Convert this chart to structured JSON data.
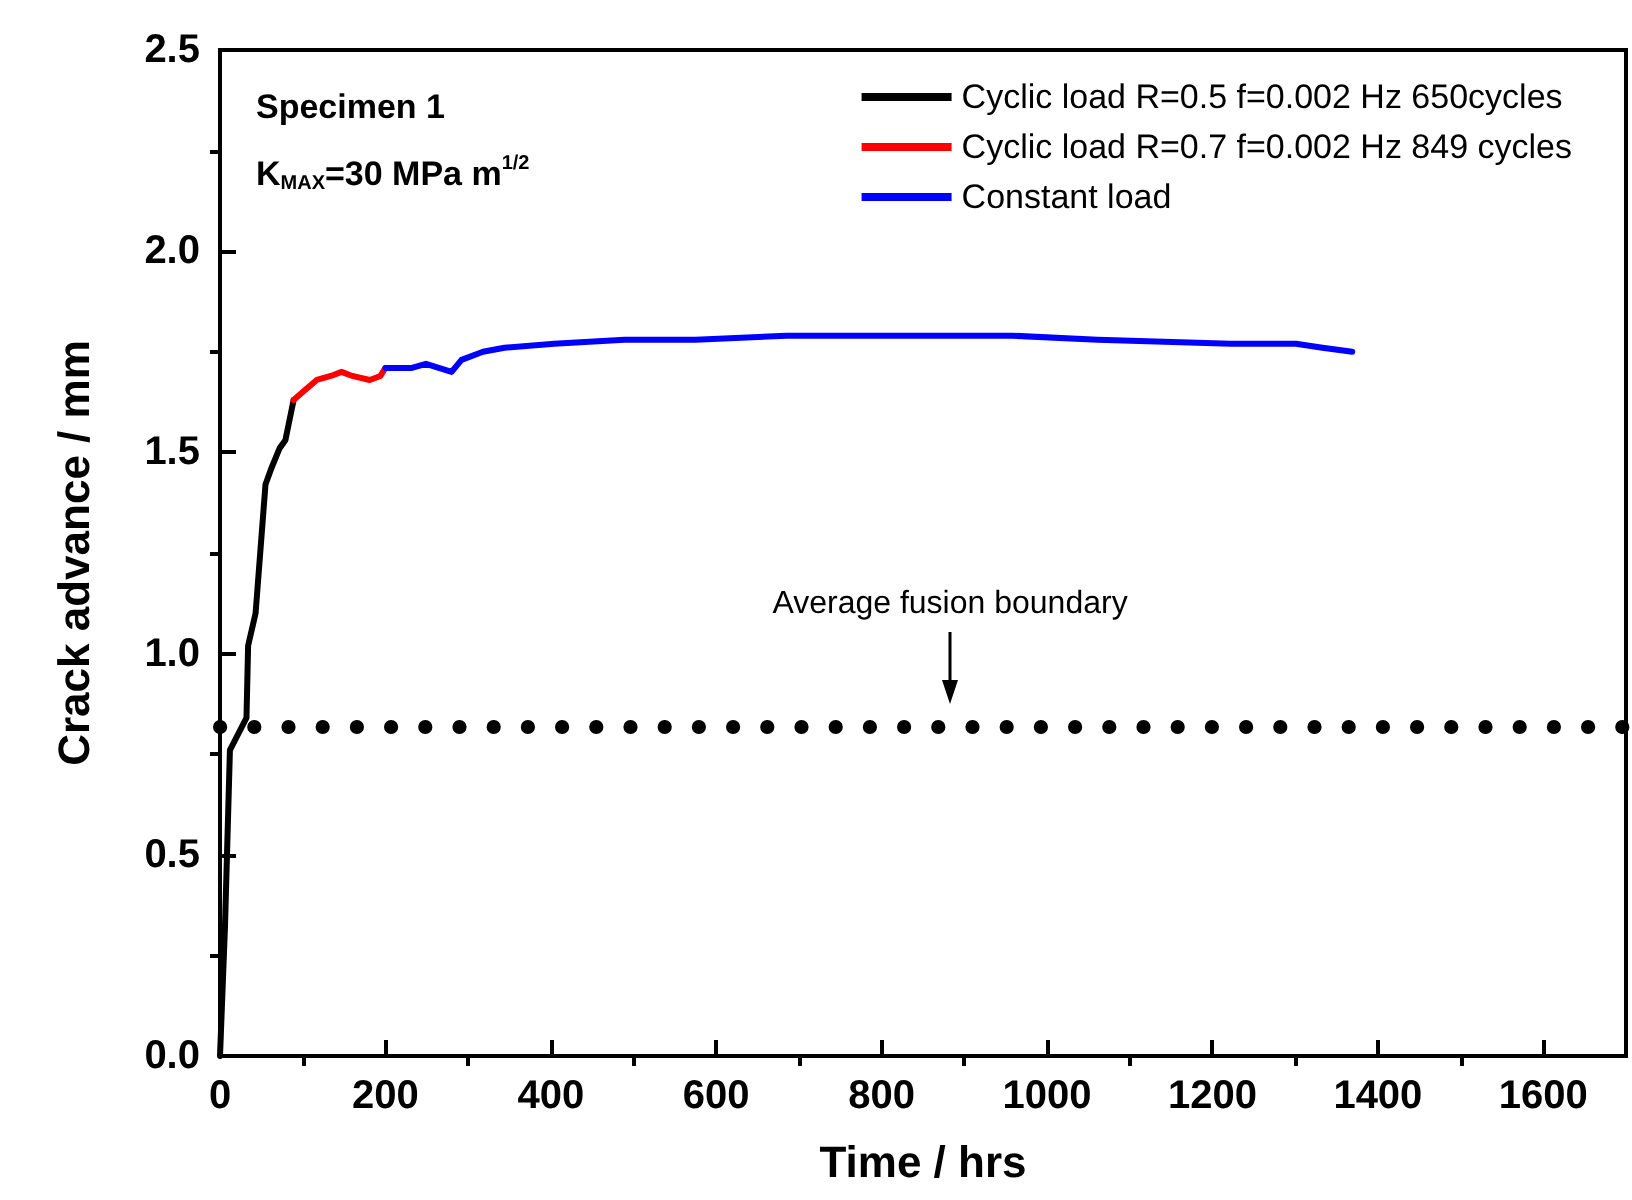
{
  "chart_data": {
    "type": "line",
    "xlabel": "Time / hrs",
    "ylabel": "Crack advance / mm",
    "xlim": [
      0,
      1700
    ],
    "xticks": [
      0,
      200,
      400,
      600,
      800,
      1000,
      1200,
      1400,
      1600
    ],
    "ylim": [
      0,
      2.5
    ],
    "yticks": [
      {
        "value": 0,
        "label": "0.0"
      },
      {
        "value": 0.5,
        "label": "0.5"
      },
      {
        "value": 1,
        "label": "1.0"
      },
      {
        "value": 1.5,
        "label": "1.5"
      },
      {
        "value": 2,
        "label": "2.0"
      },
      {
        "value": 2.5,
        "label": "2.5"
      }
    ],
    "grid": false,
    "legend": "top right",
    "marker": "none",
    "line_style": "solid",
    "series": [
      {
        "name": "Cyclic load R=0.5 f=0.002 Hz 650cycles",
        "color": "#000000",
        "x": [
          0,
          6,
          12,
          32,
          34,
          43,
          55,
          62,
          72,
          79,
          83,
          89
        ],
        "values": [
          0,
          0.32,
          0.76,
          0.84,
          1.02,
          1.1,
          1.42,
          1.46,
          1.51,
          1.53,
          1.57,
          1.63
        ]
      },
      {
        "name": "Cyclic load R=0.7 f=0.002 Hz 849 cycles",
        "color": "#ff0000",
        "x": [
          89,
          100,
          117,
          134,
          147,
          160,
          181,
          194,
          200
        ],
        "values": [
          1.63,
          1.65,
          1.68,
          1.69,
          1.7,
          1.69,
          1.68,
          1.69,
          1.71
        ]
      },
      {
        "name": "Constant load",
        "color": "#0000ff",
        "x": [
          200,
          216,
          232,
          249,
          280,
          292,
          318,
          344,
          404,
          489,
          575,
          685,
          806,
          958,
          1061,
          1222,
          1301,
          1333,
          1369
        ],
        "values": [
          1.71,
          1.71,
          1.71,
          1.72,
          1.7,
          1.73,
          1.75,
          1.76,
          1.77,
          1.78,
          1.78,
          1.79,
          1.79,
          1.79,
          1.78,
          1.77,
          1.77,
          1.76,
          1.75
        ]
      }
    ],
    "ref_lines": [
      {
        "axis": "y",
        "value": 0.82,
        "color": "#000000",
        "line_style": "dotted"
      }
    ],
    "annotations": [
      "Specimen 1",
      "K$_{MAX}$=30 MPa m$^{1/2}$",
      "Average fusion boundary"
    ]
  }
}
